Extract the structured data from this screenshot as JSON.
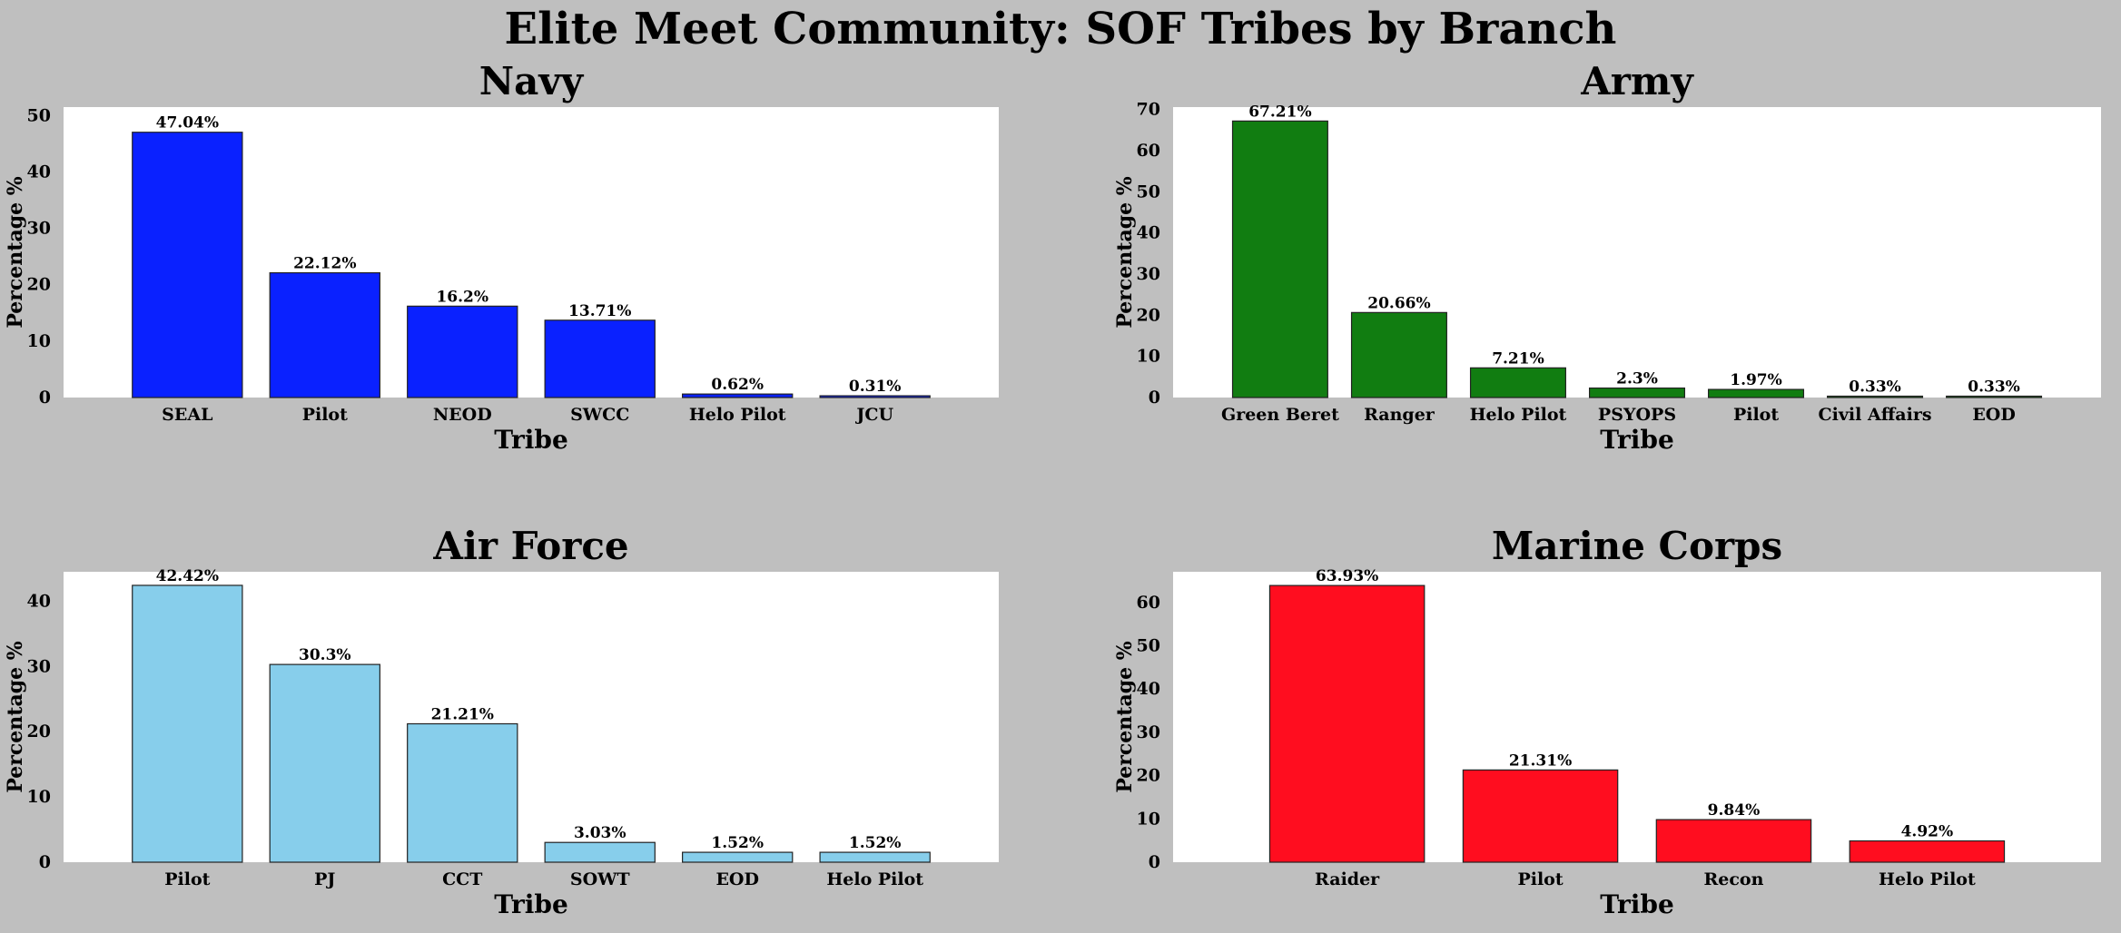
{
  "figure_title": "Elite Meet Community: SOF Tribes by Branch",
  "chart_data": [
    {
      "type": "bar",
      "title": "Navy",
      "xlabel": "Tribe",
      "ylabel": "Percentage %",
      "color": "#0a21ff",
      "categories": [
        "SEAL",
        "Pilot",
        "NEOD",
        "SWCC",
        "Helo Pilot",
        "JCU"
      ],
      "values": [
        47.04,
        22.12,
        16.2,
        13.71,
        0.62,
        0.31
      ],
      "labels": [
        "47.04%",
        "22.12%",
        "16.2%",
        "13.71%",
        "0.62%",
        "0.31%"
      ],
      "ylim": [
        0,
        50
      ],
      "yticks": [
        0,
        10,
        20,
        30,
        40,
        50
      ],
      "grid": false
    },
    {
      "type": "bar",
      "title": "Army",
      "xlabel": "Tribe",
      "ylabel": "Percentage %",
      "color": "#117d11",
      "categories": [
        "Green Beret",
        "Ranger",
        "Helo Pilot",
        "PSYOPS",
        "Pilot",
        "Civil Affairs",
        "EOD"
      ],
      "values": [
        67.21,
        20.66,
        7.21,
        2.3,
        1.97,
        0.33,
        0.33
      ],
      "labels": [
        "67.21%",
        "20.66%",
        "7.21%",
        "2.3%",
        "1.97%",
        "0.33%",
        "0.33%"
      ],
      "ylim": [
        0,
        70
      ],
      "yticks": [
        0,
        10,
        20,
        30,
        40,
        50,
        60,
        70
      ],
      "grid": false
    },
    {
      "type": "bar",
      "title": "Air Force",
      "xlabel": "Tribe",
      "ylabel": "Percentage %",
      "color": "#87ceeb",
      "categories": [
        "Pilot",
        "PJ",
        "CCT",
        "SOWT",
        "EOD",
        "Helo Pilot"
      ],
      "values": [
        42.42,
        30.3,
        21.21,
        3.03,
        1.52,
        1.52
      ],
      "labels": [
        "42.42%",
        "30.3%",
        "21.21%",
        "3.03%",
        "1.52%",
        "1.52%"
      ],
      "ylim": [
        0,
        40
      ],
      "yticks": [
        0,
        10,
        20,
        30,
        40
      ],
      "grid": false
    },
    {
      "type": "bar",
      "title": "Marine Corps",
      "xlabel": "Tribe",
      "ylabel": "Percentage %",
      "color": "#ff0d1f",
      "categories": [
        "Raider",
        "Pilot",
        "Recon",
        "Helo Pilot"
      ],
      "values": [
        63.93,
        21.31,
        9.84,
        4.92
      ],
      "labels": [
        "63.93%",
        "21.31%",
        "9.84%",
        "4.92%"
      ],
      "ylim": [
        0,
        60
      ],
      "yticks": [
        0,
        10,
        20,
        30,
        40,
        50,
        60
      ],
      "grid": false
    }
  ]
}
